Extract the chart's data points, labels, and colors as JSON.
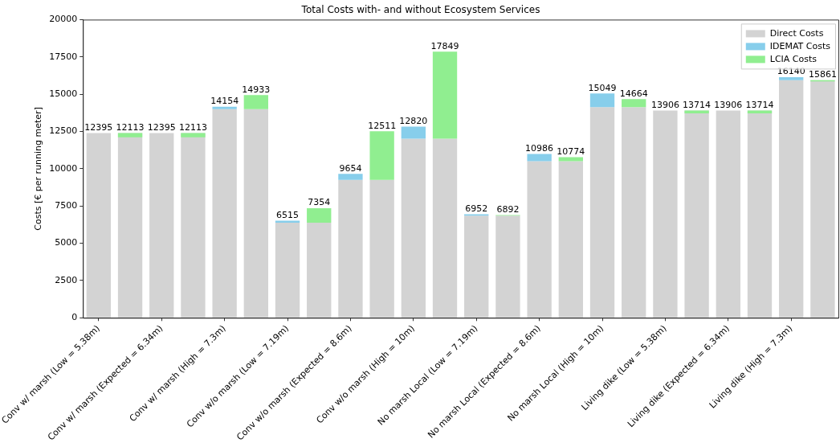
{
  "chart_data": {
    "type": "bar",
    "title": "Total Costs with- and without Ecosystem Services",
    "ylabel": "Costs [€ per running meter]",
    "categories": [
      "Conv w/ marsh (Low = 5.38m)",
      null,
      "Conv w/ marsh (Expected = 6.34m)",
      null,
      "Conv w/ marsh (High = 7.3m)",
      null,
      "Conv w/o marsh (Low = 7.19m)",
      null,
      "Conv w/o marsh (Expected = 8.6m)",
      null,
      "Conv w/o marsh (High = 10m)",
      null,
      "No marsh Local (Low = 7.19m)",
      null,
      "No marsh Local (Expected = 8.6m)",
      null,
      "No marsh Local (High = 10m)",
      null,
      "Living dike (Low = 5.38m)",
      null,
      "Living dike (Expected = 6.34m)",
      null,
      "Living dike (High = 7.3m)",
      null
    ],
    "series": [
      {
        "name": "Direct Costs",
        "color": "#d3d3d3",
        "values": [
          12395,
          12395,
          12395,
          12395,
          14000,
          14000,
          6380,
          6380,
          9250,
          9250,
          12020,
          12020,
          6850,
          6850,
          10500,
          10500,
          14130,
          14130,
          13906,
          13906,
          13906,
          13906,
          15940,
          15940
        ]
      },
      {
        "name": "IDEMAT Costs",
        "color": "#87ceeb",
        "values": [
          0,
          null,
          0,
          null,
          154,
          null,
          135,
          null,
          404,
          null,
          800,
          null,
          102,
          null,
          486,
          null,
          919,
          null,
          0,
          null,
          0,
          null,
          200,
          null
        ]
      },
      {
        "name": "LCIA Costs",
        "color": "#90ee90",
        "base": [
          null,
          12395,
          null,
          12395,
          null,
          14000,
          null,
          6380,
          null,
          9250,
          null,
          12020,
          null,
          6850,
          null,
          10500,
          null,
          14130,
          null,
          13906,
          null,
          13906,
          null,
          15940
        ],
        "values": [
          null,
          -282,
          null,
          -282,
          null,
          933,
          null,
          974,
          null,
          3261,
          null,
          5829,
          null,
          42,
          null,
          274,
          null,
          534,
          null,
          -192,
          null,
          -192,
          null,
          -79
        ]
      }
    ],
    "stacked": true,
    "totals": [
      "12395",
      "12113",
      "12395",
      "12113",
      "14154",
      "14933",
      "6515",
      "7354",
      "9654",
      "12511",
      "12820",
      "17849",
      "6952",
      "6892",
      "10986",
      "10774",
      "15049",
      "14664",
      "13906",
      "13714",
      "13906",
      "13714",
      "16140",
      "15861"
    ],
    "ylim": [
      0,
      20000
    ],
    "yticks": [
      0,
      2500,
      5000,
      7500,
      10000,
      12500,
      15000,
      17500,
      20000
    ],
    "grid": false,
    "legend": "top right"
  }
}
